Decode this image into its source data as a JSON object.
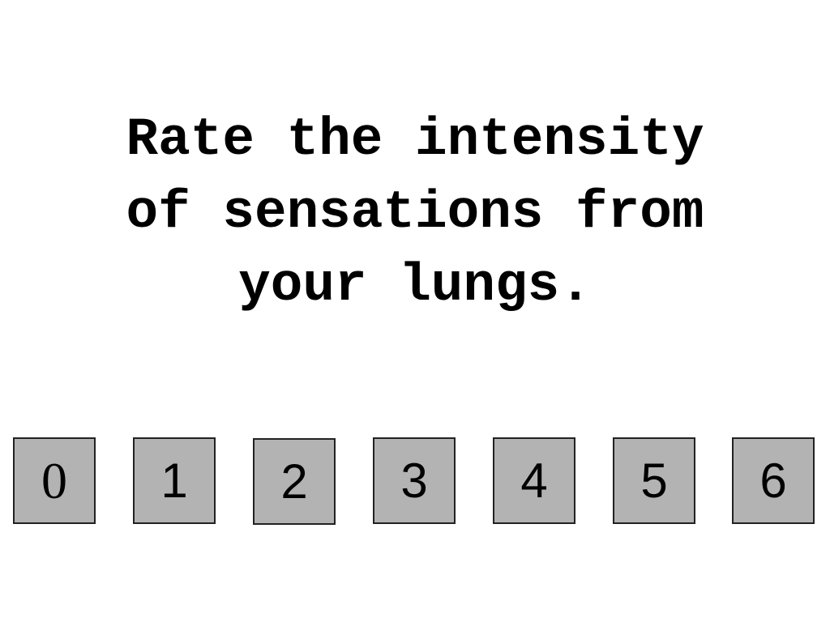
{
  "prompt": {
    "line1": "Rate the intensity",
    "line2": "of sensations from",
    "line3": "your lungs."
  },
  "rating_scale": {
    "options": [
      "0",
      "1",
      "2",
      "3",
      "4",
      "5",
      "6"
    ]
  },
  "colors": {
    "background": "#ffffff",
    "button_fill": "#b3b3b3",
    "button_border": "#222222",
    "text": "#000000"
  }
}
